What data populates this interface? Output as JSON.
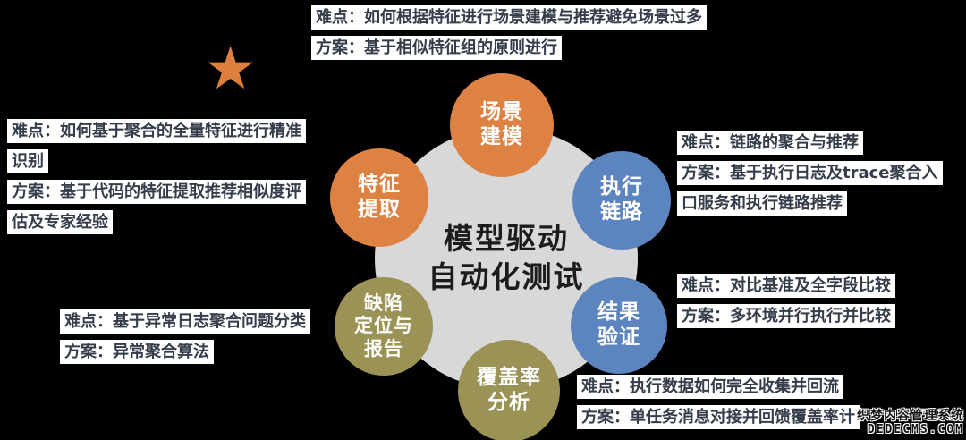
{
  "canvas": {
    "background": "#000000"
  },
  "star": {
    "glyph": "★",
    "color": "#DE7F3D"
  },
  "center": {
    "title_lines": [
      "模型驱动",
      "自动化测试"
    ],
    "circle_color": "#D8D8D8",
    "text_color": "#1C1C1C"
  },
  "nodes": [
    {
      "name": "scenario-modeling",
      "lines": [
        "场景",
        "建模"
      ],
      "color": "#DE8243"
    },
    {
      "name": "feature-extraction",
      "lines": [
        "特征",
        "提取"
      ],
      "color": "#DE8243"
    },
    {
      "name": "execution-link",
      "lines": [
        "执行",
        "链路"
      ],
      "color": "#5C85BF"
    },
    {
      "name": "result-verification",
      "lines": [
        "结果",
        "验证"
      ],
      "color": "#5C85BF"
    },
    {
      "name": "defect-location-report",
      "lines": [
        "缺陷",
        "定位与",
        "报告"
      ],
      "color": "#9B9355"
    },
    {
      "name": "coverage-analysis",
      "lines": [
        "覆盖率",
        "分析"
      ],
      "color": "#9B9355"
    }
  ],
  "annotations": {
    "scenario": {
      "lines": [
        "难点：如何根据特征进行场景建模与推荐避免场景过多",
        "方案：基于相似特征组的原则进行"
      ]
    },
    "feature": {
      "lines": [
        "难点：如何基于聚合的全量特征进行精准",
        "识别",
        "方案：基于代码的特征提取推荐相似度评",
        "估及专家经验"
      ]
    },
    "execution": {
      "lines": [
        "难点：链路的聚合与推荐",
        "方案：基于执行日志及trace聚合入",
        "口服务和执行链路推荐"
      ]
    },
    "result": {
      "lines": [
        "难点：对比基准及全字段比较",
        "方案：多环境并行执行并比较"
      ]
    },
    "defect": {
      "lines": [
        "难点：基于异常日志聚合问题分类",
        "方案：异常聚合算法"
      ]
    },
    "coverage": {
      "lines": [
        "难点：执行数据如何完全收集并回流",
        "方案：单任务消息对接并回馈覆盖率计"
      ]
    }
  },
  "watermark": {
    "line1": "织梦内容管理系统",
    "line2": "DEDECMS.COM"
  }
}
